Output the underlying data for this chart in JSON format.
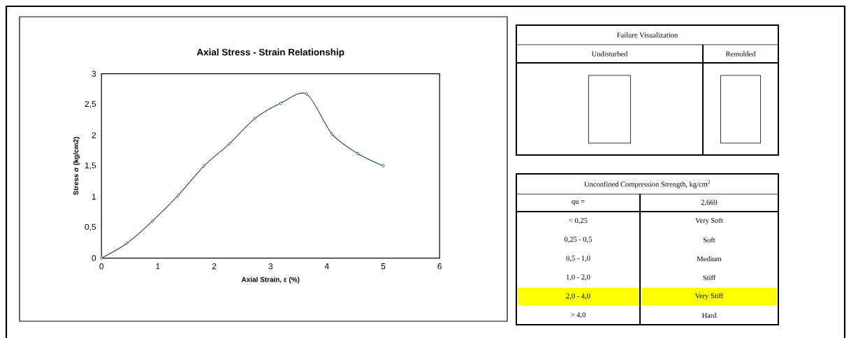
{
  "chart_data": [
    {
      "type": "line",
      "title": "Axial Stress - Strain Relationship",
      "xlabel": "Axial Strain, ε (%)",
      "ylabel": "Stress σ (kg/cm2)",
      "x": [
        0,
        0.45,
        0.9,
        1.36,
        1.82,
        2.27,
        2.72,
        3.18,
        3.64,
        4.09,
        4.55,
        5
      ],
      "values": [
        0,
        0.24,
        0.6,
        1.02,
        1.5,
        1.86,
        2.27,
        2.52,
        2.67,
        2.02,
        1.7,
        1.5
      ],
      "color": "#1f3f7f",
      "marker": "diamond",
      "line_style": "solid",
      "grid": false,
      "xlim": [
        0,
        6
      ],
      "xticks": [
        0,
        1,
        2,
        3,
        4,
        5,
        6
      ],
      "ylim": [
        0,
        3
      ],
      "yticks": [
        0,
        {
          "value": 0.5,
          "label": "0,5"
        },
        1,
        {
          "value": 1.5,
          "label": "1,5"
        },
        2,
        {
          "value": 2.5,
          "label": "2,5"
        },
        3
      ]
    },
    {
      "type": "other",
      "title": "Failure Visualization",
      "categories": [
        "Undisturbed",
        "Remolded"
      ]
    },
    {
      "type": "other",
      "title": "Unconfined Compression Strength, kg/cm$^{2}$",
      "annotations": [
        "qu =",
        "2,669",
        "< 0,25",
        "Very Soft",
        "0,25 - 0,5",
        "Soft",
        "0,5 - 1,0",
        "Medium",
        "1,0 - 2,0",
        "Stiff",
        "2,0 - 4,0",
        "Very Stiff",
        "> 4,0",
        "Hard"
      ],
      "colors": [
        null,
        null,
        null,
        null,
        null,
        null,
        null,
        null,
        null,
        null,
        "#ffff00",
        "#ffff00",
        null,
        null
      ]
    }
  ]
}
